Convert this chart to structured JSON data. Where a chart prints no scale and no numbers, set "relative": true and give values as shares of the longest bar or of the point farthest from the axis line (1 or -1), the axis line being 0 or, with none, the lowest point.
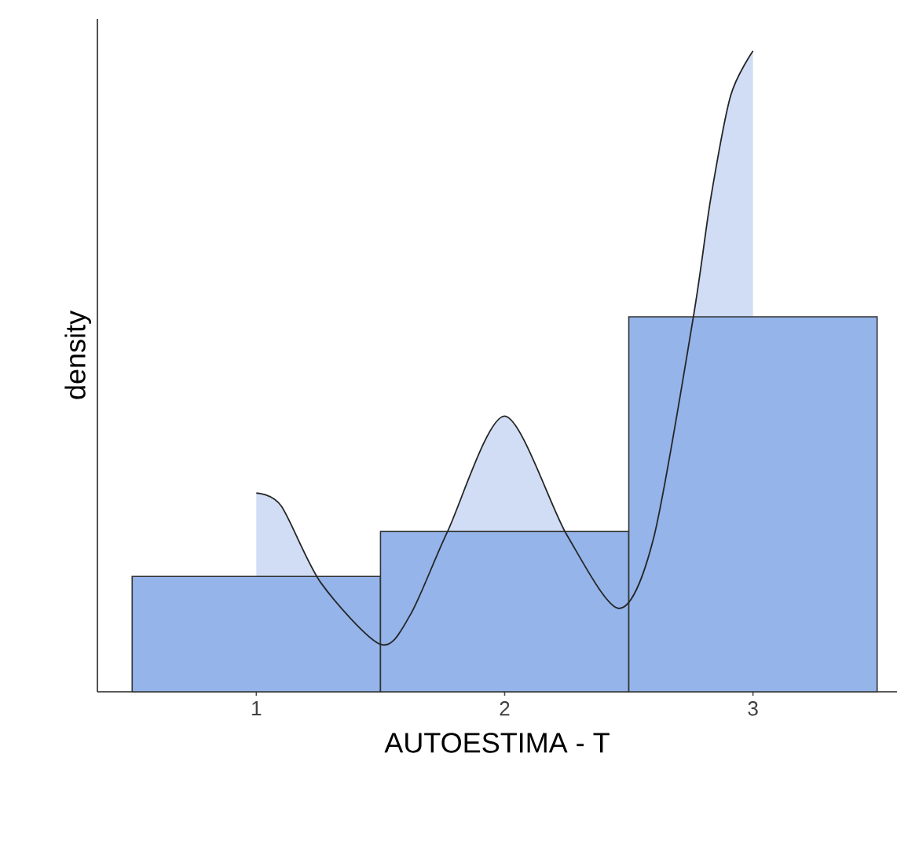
{
  "chart_data": {
    "type": "histogram",
    "xlabel": "AUTOESTIMA - T",
    "ylabel": "density",
    "relative": true,
    "bins": [
      0.5,
      1.5,
      2.5,
      3.5
    ],
    "values": [
      0.18,
      0.25,
      0.585
    ],
    "color": "#94b4ea",
    "xlim": [
      0.36,
      3.58
    ],
    "xticks": [
      1,
      2,
      3
    ],
    "series": [
      {
        "type": "area",
        "color": "#d0ddf5",
        "x": [
          1.0,
          1.1,
          1.26,
          1.5,
          1.62,
          1.77,
          2.0,
          2.25,
          2.46,
          2.6,
          2.76,
          2.83,
          2.91,
          3.0
        ],
        "values": [
          0.31,
          0.29,
          0.17,
          0.074,
          0.12,
          0.25,
          0.43,
          0.245,
          0.13,
          0.24,
          0.585,
          0.77,
          0.93,
          1.0
        ]
      }
    ]
  }
}
